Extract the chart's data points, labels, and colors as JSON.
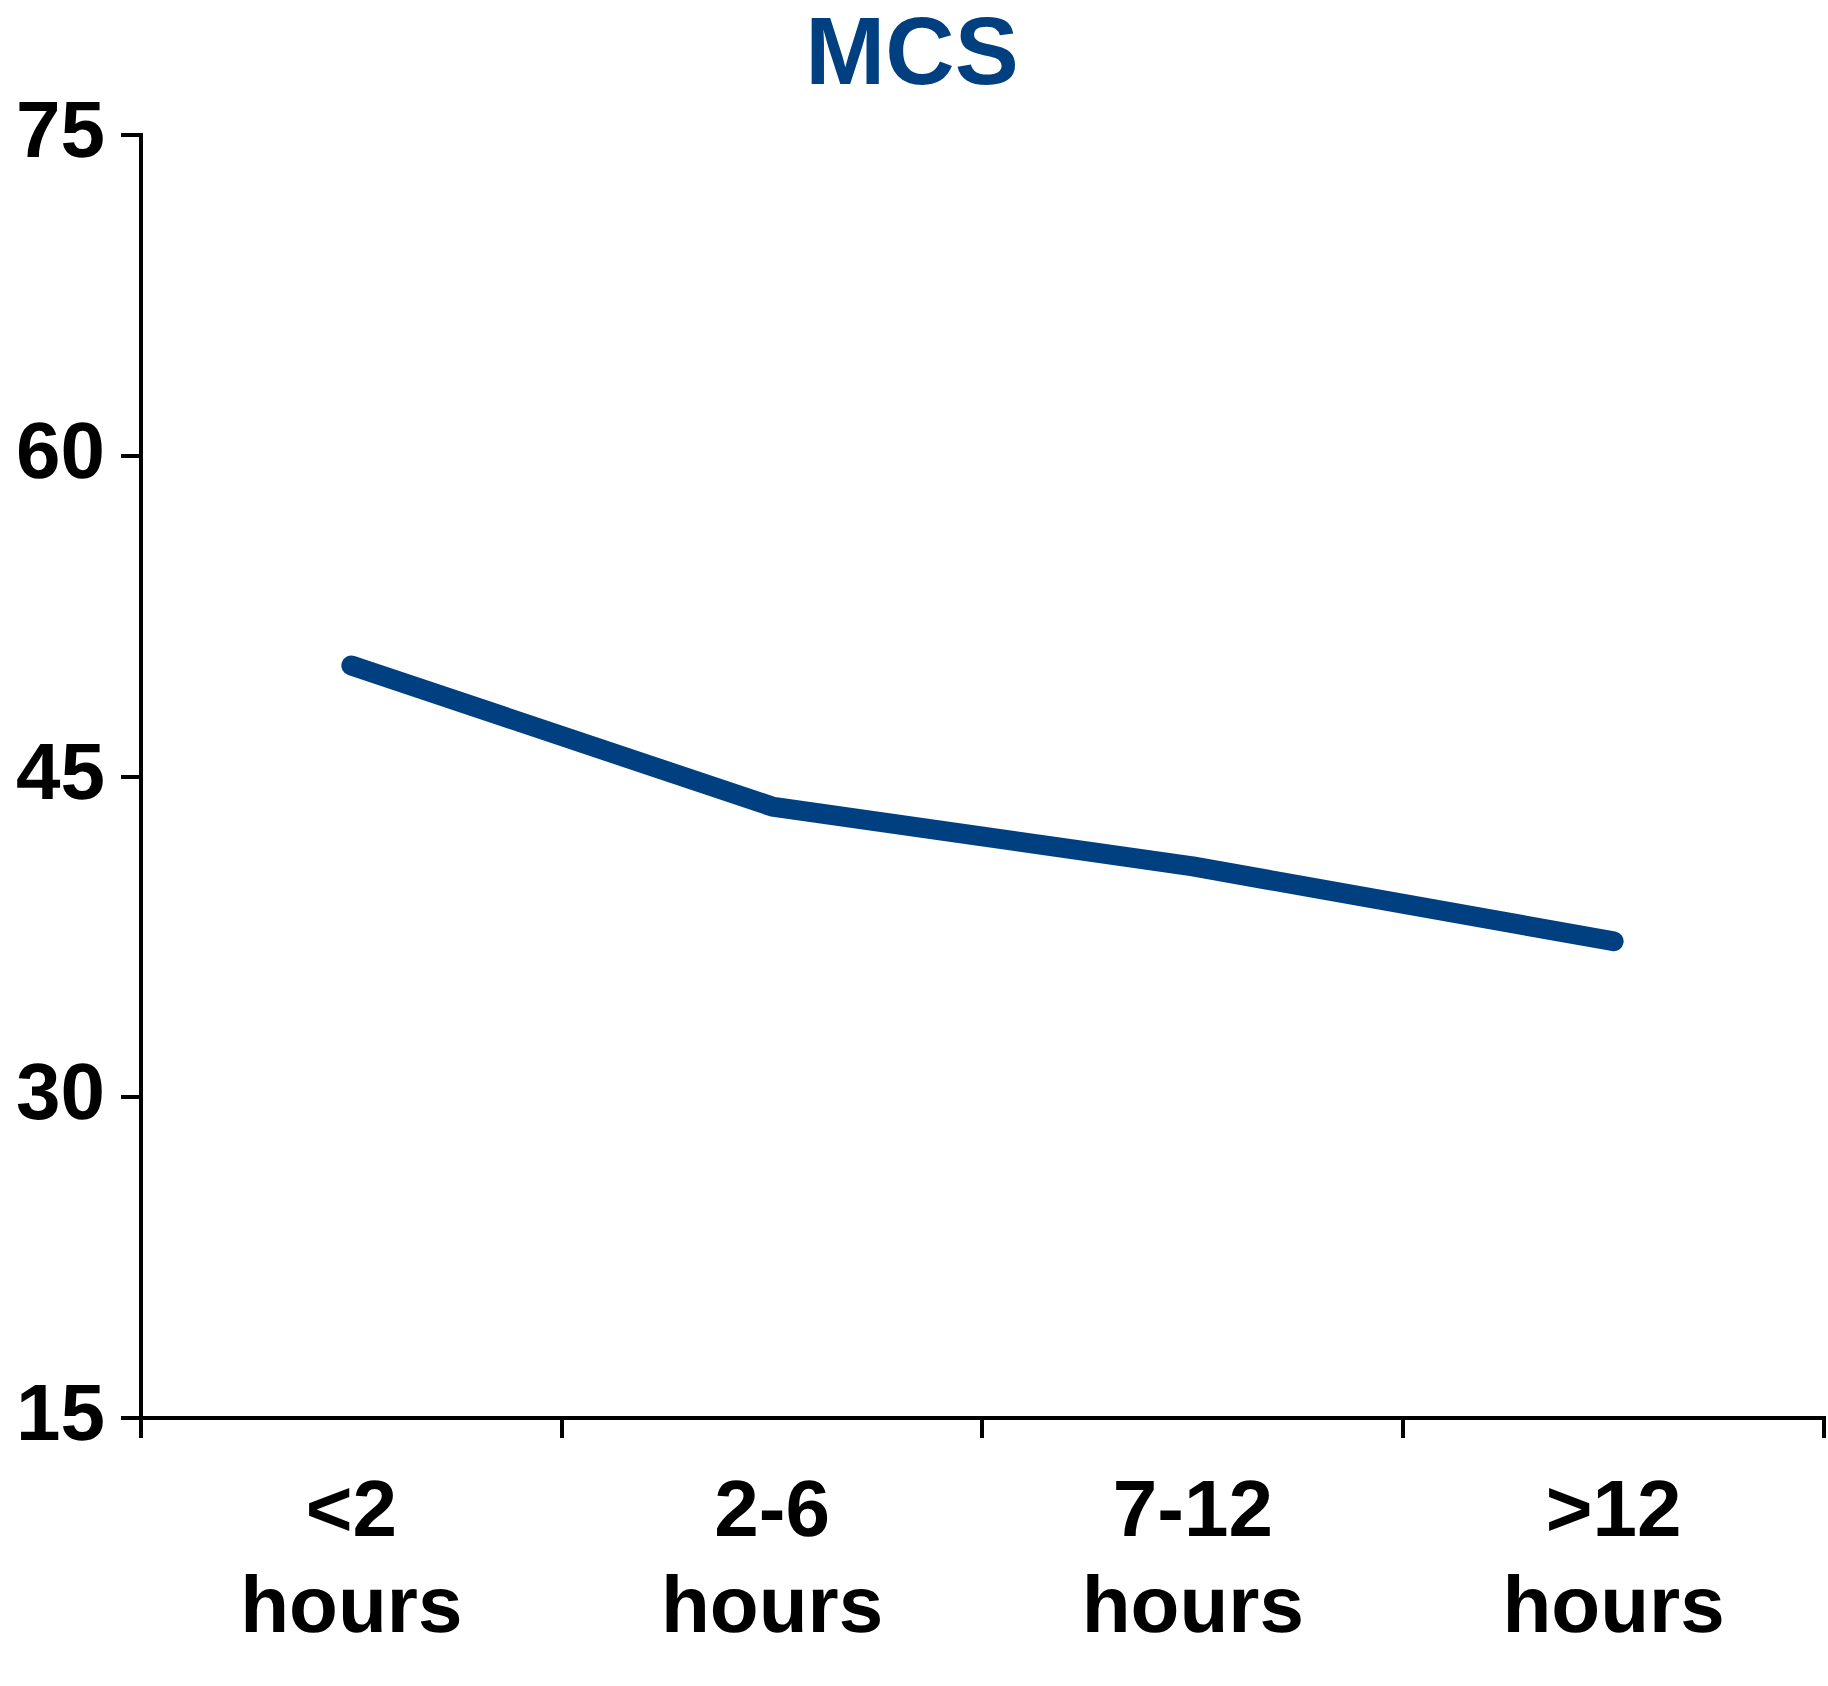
{
  "chart_data": {
    "type": "line",
    "title": "MCS",
    "categories": [
      "<2 hours",
      "2-6 hours",
      "7-12 hours",
      ">12 hours"
    ],
    "series": [
      {
        "color": "#004080",
        "values": [
          50.2,
          43.6,
          40.8,
          37.3
        ]
      }
    ],
    "ylim": [
      15,
      75
    ],
    "yticks": [
      15,
      30,
      45,
      60,
      75
    ],
    "grid": false,
    "legend": false,
    "marker": "none",
    "line_style": "solid"
  }
}
